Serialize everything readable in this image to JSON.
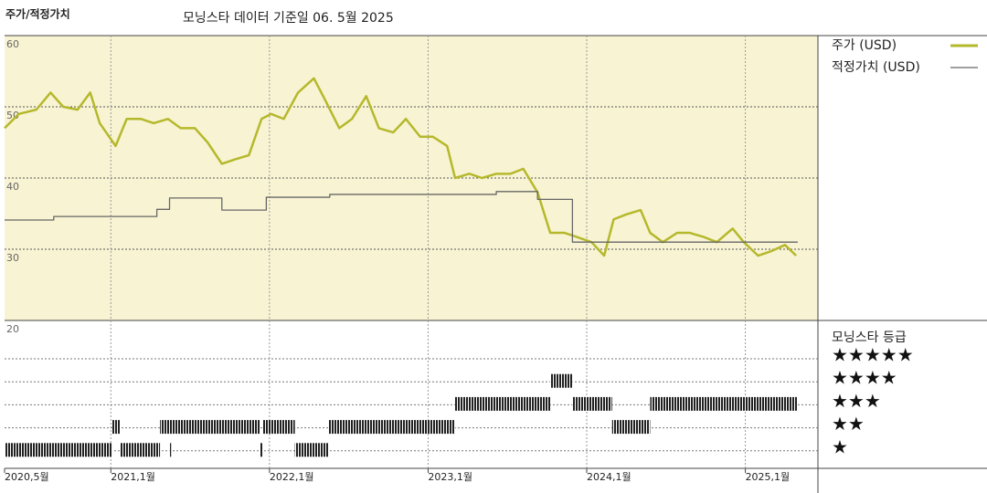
{
  "chart_data": {
    "type": "line",
    "title": "주가/적정가치",
    "subtitle": "모닝스타 데이터 기준일 06. 5월 2025",
    "xlim": [
      2020.33,
      2025.4
    ],
    "xticks": [
      {
        "value": 2020.33,
        "label": "2020,5월"
      },
      {
        "value": 2021.0,
        "label": "2021,1월"
      },
      {
        "value": 2022.0,
        "label": "2022,1월"
      },
      {
        "value": 2023.0,
        "label": "2023,1월"
      },
      {
        "value": 2024.0,
        "label": "2024,1월"
      },
      {
        "value": 2025.0,
        "label": "2025,1월"
      }
    ],
    "ylim": [
      20,
      60
    ],
    "yticks": [
      20,
      30,
      40,
      50,
      60
    ],
    "grid": true,
    "series": [
      {
        "name": "주가 (USD)",
        "color": "#b5b82c",
        "x": [
          2020.33,
          2020.42,
          2020.53,
          2020.62,
          2020.7,
          2020.79,
          2020.87,
          2020.93,
          2021.03,
          2021.1,
          2021.19,
          2021.27,
          2021.36,
          2021.44,
          2021.53,
          2021.61,
          2021.7,
          2021.78,
          2021.87,
          2021.95,
          2022.01,
          2022.09,
          2022.18,
          2022.28,
          2022.35,
          2022.44,
          2022.52,
          2022.61,
          2022.69,
          2022.78,
          2022.86,
          2022.95,
          2023.03,
          2023.12,
          2023.17,
          2023.26,
          2023.34,
          2023.43,
          2023.52,
          2023.6,
          2023.69,
          2023.77,
          2023.86,
          2023.94,
          2024.03,
          2024.11,
          2024.17,
          2024.25,
          2024.34,
          2024.4,
          2024.48,
          2024.57,
          2024.65,
          2024.74,
          2024.82,
          2024.92,
          2024.99,
          2025.08,
          2025.16,
          2025.25,
          2025.32
        ],
        "values": [
          47,
          49,
          49.6,
          52,
          50,
          49.6,
          52,
          47.7,
          44.5,
          48.3,
          48.3,
          47.7,
          48.3,
          47,
          47,
          45,
          42,
          42.6,
          43.2,
          48.3,
          49,
          48.3,
          52,
          54,
          51,
          47,
          48.3,
          51.5,
          47,
          46.4,
          48.3,
          45.8,
          45.8,
          44.5,
          40,
          40.6,
          40,
          40.6,
          40.6,
          41.3,
          38,
          32.3,
          32.3,
          31.7,
          31,
          29.1,
          34.2,
          34.9,
          35.5,
          32.3,
          31,
          32.3,
          32.3,
          31.7,
          31,
          32.9,
          31,
          29.1,
          29.7,
          30.6,
          29.1
        ]
      },
      {
        "name": "적정가치 (USD)",
        "color": "#666666",
        "step": true,
        "x": [
          2020.33,
          2020.64,
          2021.29,
          2021.37,
          2021.7,
          2021.98,
          2022.38,
          2023.43,
          2023.69,
          2023.91,
          2025.33
        ],
        "values": [
          34.1,
          34.6,
          35.6,
          37.2,
          35.5,
          37.3,
          37.7,
          38.1,
          37.0,
          31.0,
          31.0
        ]
      }
    ],
    "rating_title": "모닝스타 등급",
    "rating_levels": [
      {
        "stars": 5,
        "label": "★★★★★"
      },
      {
        "stars": 4,
        "label": "★★★★"
      },
      {
        "stars": 3,
        "label": "★★★"
      },
      {
        "stars": 2,
        "label": "★★"
      },
      {
        "stars": 1,
        "label": "★"
      }
    ],
    "ratings": [
      {
        "start": 2020.33,
        "end": 2021.01,
        "stars": 1
      },
      {
        "start": 2021.01,
        "end": 2021.06,
        "stars": 2
      },
      {
        "start": 2021.06,
        "end": 2021.31,
        "stars": 1
      },
      {
        "start": 2021.31,
        "end": 2021.94,
        "stars": 2
      },
      {
        "start": 2021.37,
        "end": 2021.38,
        "stars": 1
      },
      {
        "start": 2021.94,
        "end": 2021.96,
        "stars": 1
      },
      {
        "start": 2021.96,
        "end": 2022.16,
        "stars": 2
      },
      {
        "start": 2022.16,
        "end": 2022.37,
        "stars": 1
      },
      {
        "start": 2022.37,
        "end": 2023.17,
        "stars": 2
      },
      {
        "start": 2023.17,
        "end": 2023.77,
        "stars": 3
      },
      {
        "start": 2023.77,
        "end": 2023.91,
        "stars": 4
      },
      {
        "start": 2023.91,
        "end": 2024.16,
        "stars": 3
      },
      {
        "start": 2024.16,
        "end": 2024.4,
        "stars": 2
      },
      {
        "start": 2024.4,
        "end": 2025.33,
        "stars": 3
      }
    ]
  }
}
